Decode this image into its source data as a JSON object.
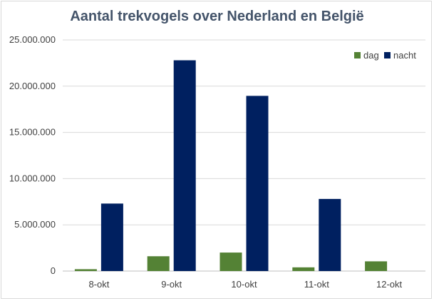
{
  "chart_data": {
    "type": "bar",
    "title": "Aantal trekvogels over Nederland en België",
    "xlabel": "",
    "ylabel": "",
    "categories": [
      "8-okt",
      "9-okt",
      "10-okt",
      "11-okt",
      "12-okt"
    ],
    "series": [
      {
        "name": "dag",
        "color": "#548235",
        "values": [
          200000,
          1600000,
          2000000,
          400000,
          1050000
        ]
      },
      {
        "name": "nacht",
        "color": "#002060",
        "values": [
          7300000,
          22800000,
          18950000,
          7800000,
          0
        ]
      }
    ],
    "ylim": [
      0,
      25000000
    ],
    "yticks": [
      0,
      5000000,
      10000000,
      15000000,
      20000000,
      25000000
    ],
    "ytick_labels": [
      "0",
      "5.000.000",
      "10.000.000",
      "15.000.000",
      "20.000.000",
      "25.000.000"
    ],
    "grid": true,
    "legend_position": "top-right"
  }
}
